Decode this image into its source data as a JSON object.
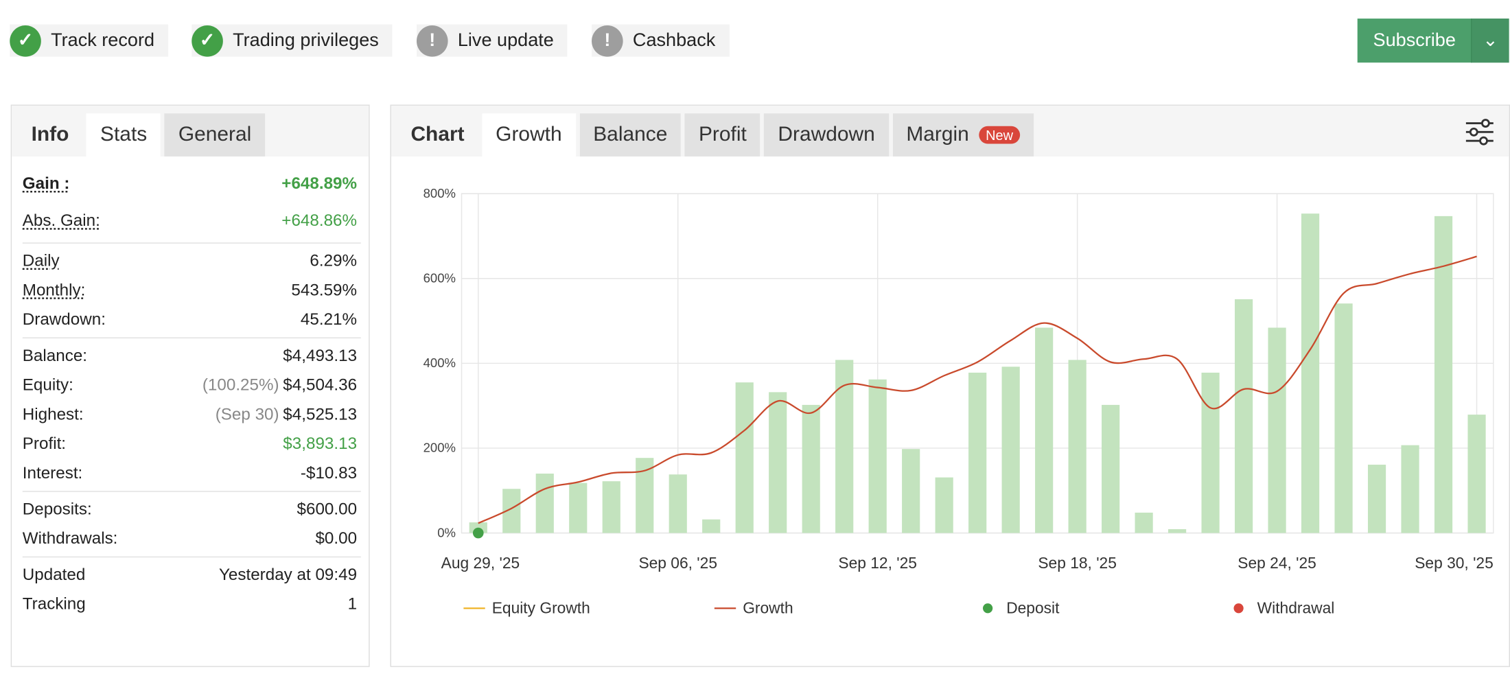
{
  "badges": [
    "Track record",
    "Trading privileges",
    "Live update",
    "Cashback"
  ],
  "subscribe": "Subscribe",
  "stats_tabs": [
    "Info",
    "Stats",
    "General"
  ],
  "stats": [
    [
      {
        "label": "Gain :",
        "value": "+648.89%",
        "color": "#43a047"
      },
      {
        "label": "Abs. Gain:",
        "value": "+648.86%",
        "color": "#43a047"
      }
    ],
    [
      {
        "label": "Daily",
        "value": "6.29%"
      },
      {
        "label": "Monthly:",
        "value": "543.59%"
      },
      {
        "label": "Drawdown:",
        "value": "45.21%"
      }
    ],
    [
      {
        "label": "Balance:",
        "value": "$4,493.13"
      },
      {
        "label": "Equity:",
        "note": "(100.25%)",
        "value": "$4,504.36"
      },
      {
        "label": "Highest:",
        "note": "(Sep 30)",
        "value": "$4,525.13"
      },
      {
        "label": "Profit:",
        "value": "$3,893.13",
        "color": "#43a047"
      },
      {
        "label": "Interest:",
        "value": "-$10.83"
      }
    ],
    [
      {
        "label": "Deposits:",
        "value": "$600.00"
      },
      {
        "label": "Withdrawals:",
        "value": "$0.00"
      }
    ],
    [
      {
        "label": "Updated",
        "value": "Yesterday at 09:49"
      },
      {
        "label": "Tracking",
        "value": "1"
      }
    ]
  ],
  "chart_tabs": [
    "Chart",
    "Growth",
    "Balance",
    "Profit",
    "Drawdown",
    "Margin"
  ],
  "new_badge": "New",
  "chart_data": {
    "type": "bar-line",
    "categories": [
      "Aug 29, '25",
      null,
      null,
      null,
      null,
      null,
      "Sep 06, '25",
      null,
      null,
      null,
      null,
      null,
      "Sep 12, '25",
      null,
      null,
      null,
      null,
      null,
      "Sep 18, '25",
      null,
      null,
      null,
      null,
      null,
      "Sep 24, '25",
      null,
      null,
      null,
      null,
      null,
      "Sep 30, '25"
    ],
    "bars": {
      "color": "#c3e3be",
      "values": [
        25,
        104,
        140,
        118,
        122,
        177,
        138,
        32,
        355,
        332,
        302,
        408,
        362,
        198,
        131,
        378,
        392,
        484,
        408,
        302,
        48,
        9,
        378,
        551,
        484,
        753,
        541,
        161,
        207,
        747,
        279
      ]
    },
    "series": [
      {
        "name": "Equity Growth",
        "color": "#f0b429",
        "kind": "line",
        "values": [
          null,
          null,
          null,
          null,
          null,
          null,
          null,
          null,
          null,
          null,
          null,
          null,
          null,
          null,
          null,
          null,
          null,
          null,
          null,
          null,
          null,
          null,
          null,
          null,
          null,
          null,
          null,
          null,
          null,
          null,
          null
        ]
      },
      {
        "name": "Growth",
        "color": "#c94a2c",
        "kind": "line",
        "values": [
          23,
          58,
          104,
          120,
          141,
          147,
          184,
          189,
          242,
          311,
          283,
          348,
          343,
          336,
          371,
          403,
          454,
          495,
          459,
          403,
          410,
          410,
          295,
          339,
          334,
          433,
          565,
          588,
          611,
          629,
          652
        ]
      },
      {
        "name": "Deposit",
        "color": "#43a047",
        "kind": "dot",
        "values": [
          0,
          null,
          null,
          null,
          null,
          null,
          null,
          null,
          null,
          null,
          null,
          null,
          null,
          null,
          null,
          null,
          null,
          null,
          null,
          null,
          null,
          null,
          null,
          null,
          null,
          null,
          null,
          null,
          null,
          null,
          null
        ]
      },
      {
        "name": "Withdrawal",
        "color": "#d9463b",
        "kind": "dot",
        "values": [
          null,
          null,
          null,
          null,
          null,
          null,
          null,
          null,
          null,
          null,
          null,
          null,
          null,
          null,
          null,
          null,
          null,
          null,
          null,
          null,
          null,
          null,
          null,
          null,
          null,
          null,
          null,
          null,
          null,
          null,
          null
        ]
      }
    ],
    "ylim": [
      0,
      800
    ],
    "yticks": [
      {
        "value": 0,
        "label": "0%"
      },
      {
        "value": 200,
        "label": "200%"
      },
      {
        "value": 400,
        "label": "400%"
      },
      {
        "value": 600,
        "label": "600%"
      },
      {
        "value": 800,
        "label": "800%"
      }
    ],
    "grid": true
  }
}
